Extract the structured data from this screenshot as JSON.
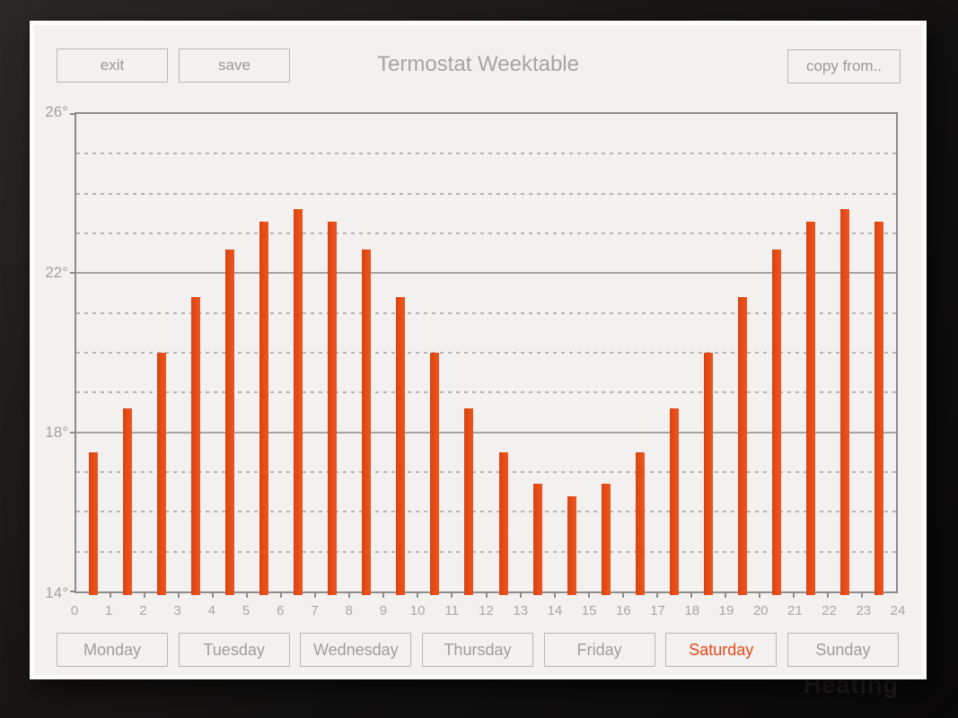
{
  "app": {
    "title": "Termostat Weektable",
    "toolbar": {
      "exit_label": "exit",
      "save_label": "save",
      "copy_from_label": "copy from.."
    },
    "background_watermark": "Heating"
  },
  "chart_data": {
    "type": "bar",
    "title": "Termostat Weektable",
    "unit": "degrees C",
    "x": [
      0,
      1,
      2,
      3,
      4,
      5,
      6,
      7,
      8,
      9,
      10,
      11,
      12,
      13,
      14,
      15,
      16,
      17,
      18,
      19,
      20,
      21,
      22,
      23
    ],
    "values": [
      17.5,
      18.6,
      20.0,
      21.4,
      22.6,
      23.3,
      23.6,
      23.3,
      22.6,
      21.4,
      20.0,
      18.6,
      17.5,
      16.7,
      16.4,
      16.7,
      17.5,
      18.6,
      20.0,
      21.4,
      22.6,
      23.3,
      23.6,
      23.3
    ],
    "ylim": [
      14,
      26
    ],
    "y_ticks": [
      26,
      22,
      18,
      14
    ],
    "y_tick_labels": [
      "26°",
      "22°",
      "18°",
      "14°"
    ],
    "y_solid_gridlines": [
      18,
      22
    ],
    "y_dashed_gridlines": [
      15,
      16,
      17,
      19,
      20,
      21,
      23,
      24,
      25
    ],
    "x_ticks": [
      0,
      1,
      2,
      3,
      4,
      5,
      6,
      7,
      8,
      9,
      10,
      11,
      12,
      13,
      14,
      15,
      16,
      17,
      18,
      19,
      20,
      21,
      22,
      23,
      24
    ],
    "legend": "none",
    "grid": "on",
    "bar_color": "#e74d17"
  },
  "day_tabs": {
    "active_color": "#e8451a",
    "items": [
      {
        "label": "Monday",
        "active": false
      },
      {
        "label": "Tuesday",
        "active": false
      },
      {
        "label": "Wednesday",
        "active": false
      },
      {
        "label": "Thursday",
        "active": false
      },
      {
        "label": "Friday",
        "active": false
      },
      {
        "label": "Saturday",
        "active": true
      },
      {
        "label": "Sunday",
        "active": false
      }
    ]
  }
}
